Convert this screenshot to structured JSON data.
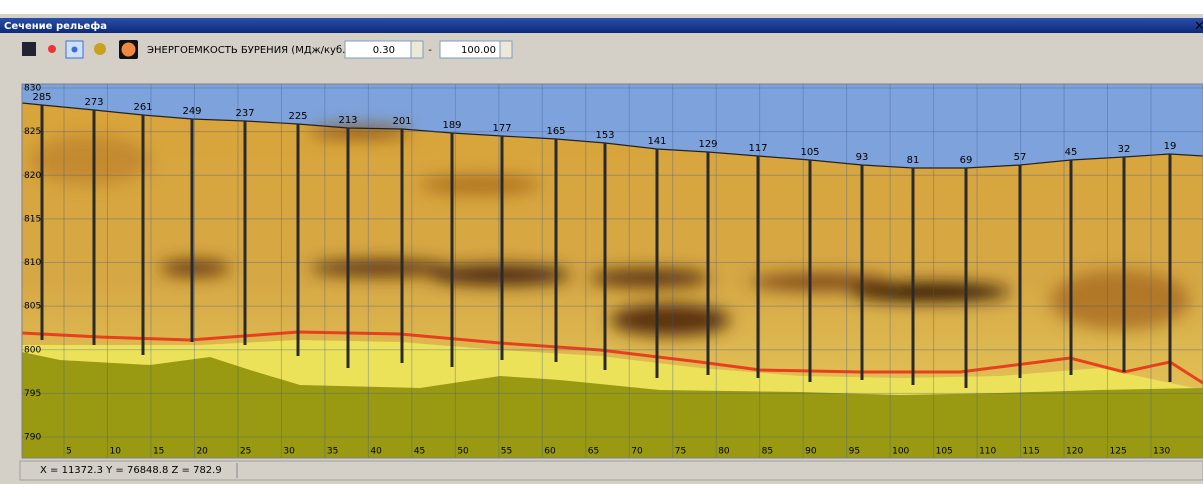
{
  "window": {
    "title": "Сечение рельефа",
    "close": "×"
  },
  "toolbar": {
    "label": "ЭНЕРГОЕМКОСТЬ БУРЕНИЯ (МДж/куб.м) :",
    "min": "0.30",
    "separator": "-",
    "max": "100.00"
  },
  "section": {
    "y_labels": [
      830,
      825,
      820,
      815,
      810,
      805,
      800,
      795,
      790
    ],
    "x_labels": [
      5,
      10,
      15,
      20,
      25,
      30,
      35,
      40,
      45,
      50,
      55,
      60,
      65,
      70,
      75,
      80,
      85,
      90,
      95,
      100,
      105,
      110,
      115,
      120,
      125,
      130
    ],
    "boreholes": [
      285,
      273,
      261,
      249,
      237,
      225,
      213,
      201,
      189,
      177,
      165,
      153,
      141,
      129,
      117,
      105,
      93,
      81,
      69,
      57,
      45,
      32,
      19
    ]
  },
  "status": {
    "text": "X = 11372.3   Y = 76848.8   Z = 782.9"
  }
}
